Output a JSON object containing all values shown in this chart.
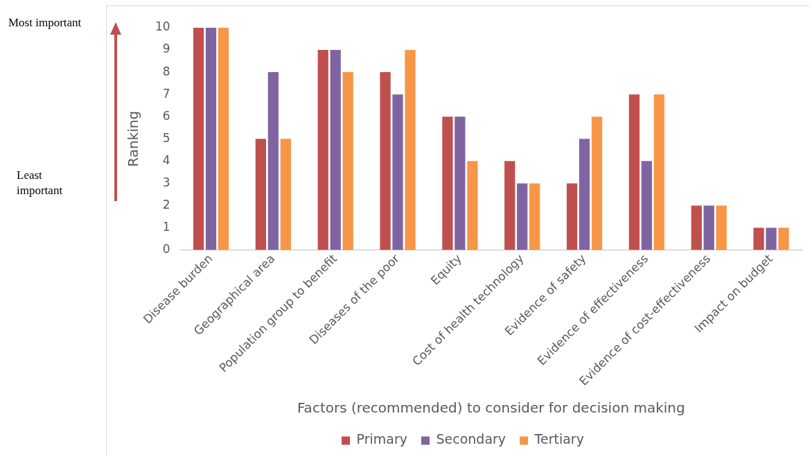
{
  "chart_data": {
    "type": "bar",
    "ylabel": "Ranking",
    "xlabel": "Factors (recommended) to consider for decision making",
    "categories": [
      "Disease burden",
      "Geographical area",
      "Population group to benefit",
      "Diseases of the poor",
      "Equity",
      "Cost of health technology",
      "Evidence of safety",
      "Evidence of effectiveness",
      "Evidence of cost-effectiveness",
      "Impact on budget"
    ],
    "series": [
      {
        "name": "Primary",
        "color": "#c0504d",
        "values": [
          10,
          5,
          9,
          8,
          6,
          4,
          3,
          7,
          2,
          1
        ]
      },
      {
        "name": "Secondary",
        "color": "#8064a2",
        "values": [
          10,
          8,
          9,
          7,
          6,
          3,
          5,
          4,
          2,
          1
        ]
      },
      {
        "name": "Tertiary",
        "color": "#f79646",
        "values": [
          10,
          5,
          8,
          9,
          4,
          3,
          6,
          7,
          2,
          1
        ]
      }
    ],
    "ylim": [
      0,
      10
    ],
    "yticks": [
      0,
      1,
      2,
      3,
      4,
      5,
      6,
      7,
      8,
      9,
      10
    ],
    "grid": false,
    "legend": "bottom",
    "annotations": [
      "Most important",
      "Least important"
    ]
  }
}
